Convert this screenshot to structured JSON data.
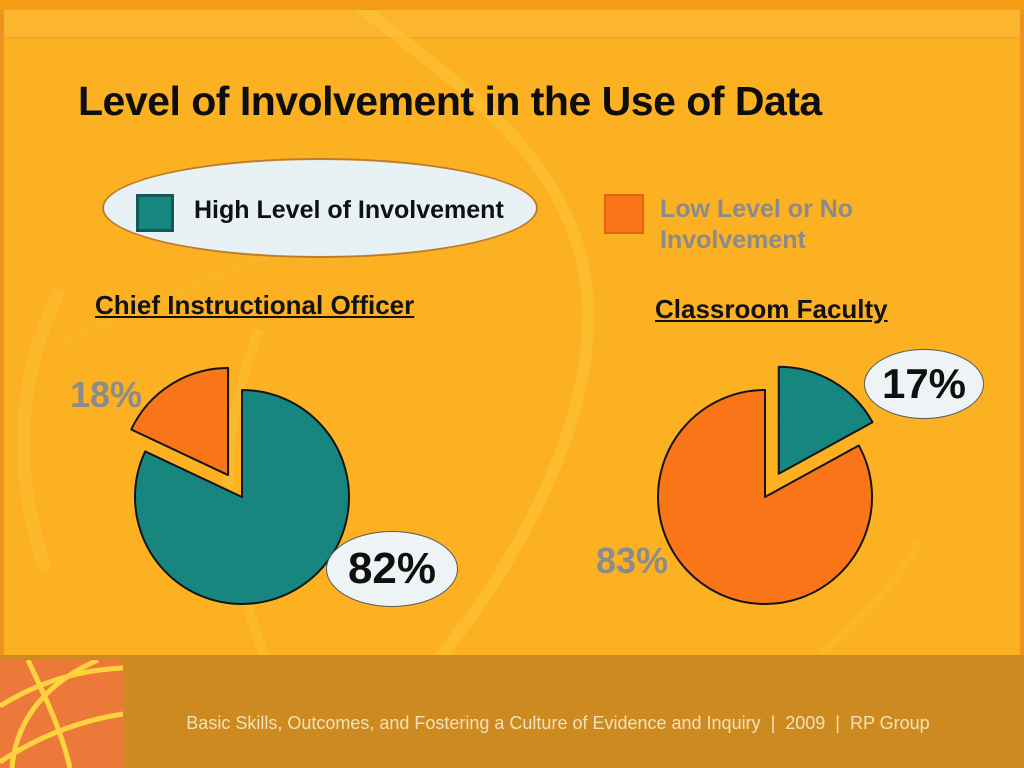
{
  "slide": {
    "title": "Level of Involvement in the Use of Data",
    "legend": {
      "high": {
        "label": "High Level of Involvement",
        "color": "#17867F"
      },
      "low": {
        "label": "Low Level or No Involvement",
        "color": "#FA7517"
      }
    },
    "footer": {
      "text": "Basic Skills, Outcomes, and Fostering a Culture of Evidence and Inquiry  |  2009  |  RP Group"
    }
  },
  "chart_data": [
    {
      "type": "pie",
      "title": "Chief Instructional Officer",
      "labels": [
        "High Level of Involvement",
        "Low Level or No Involvement"
      ],
      "values": [
        82,
        18
      ],
      "data_labels": [
        "82%",
        "18%"
      ],
      "colors": [
        "#17867F",
        "#FA7517"
      ],
      "exploded_slice": "Low Level or No Involvement",
      "legend_position": "top"
    },
    {
      "type": "pie",
      "title": "Classroom Faculty",
      "labels": [
        "High Level of Involvement",
        "Low Level or No Involvement"
      ],
      "values": [
        17,
        83
      ],
      "data_labels": [
        "17%",
        "83%"
      ],
      "colors": [
        "#17867F",
        "#FA7517"
      ],
      "exploded_slice": "High Level of Involvement",
      "legend_position": "top"
    }
  ]
}
